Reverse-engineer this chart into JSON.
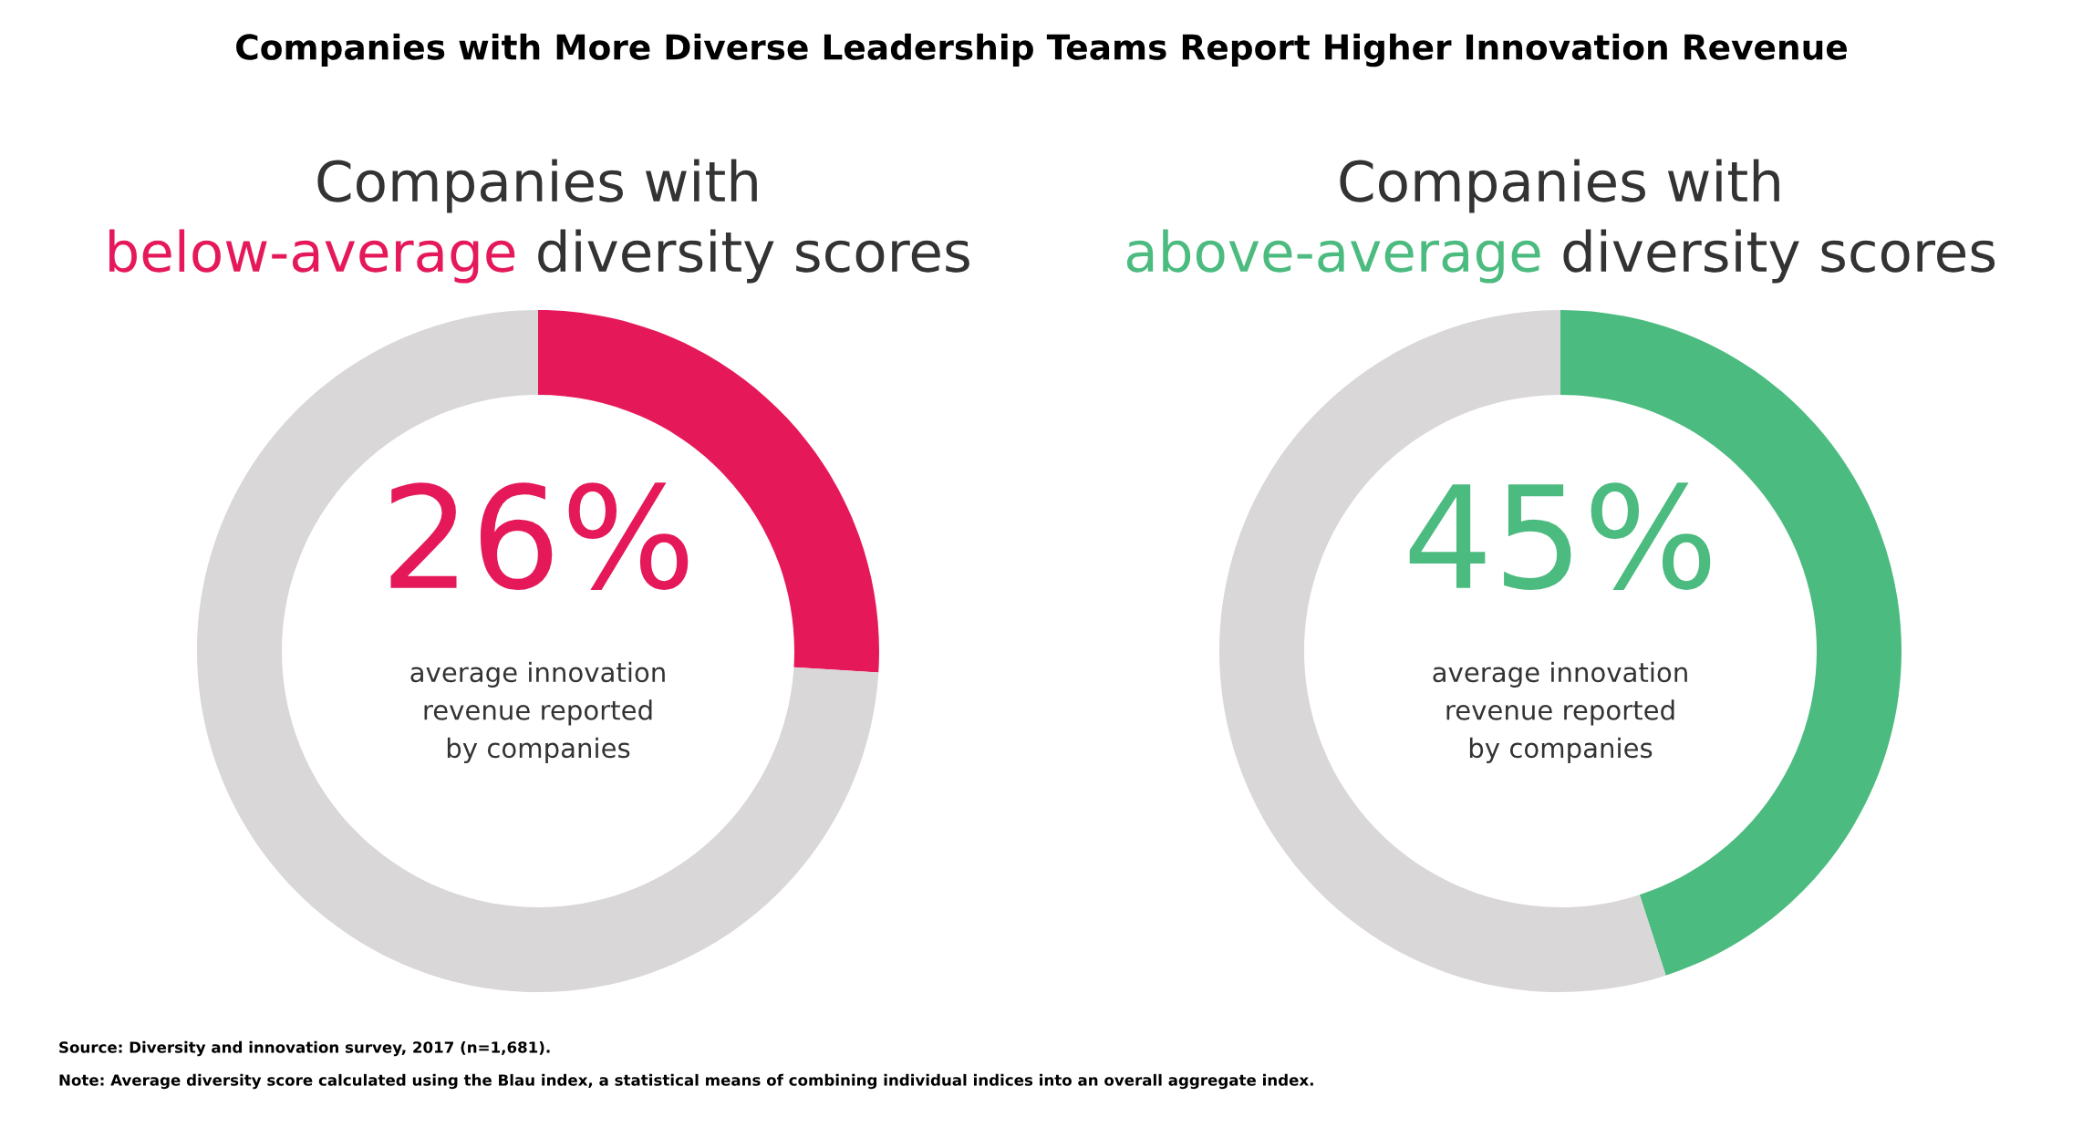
{
  "chart_data": [
    {
      "type": "other",
      "title": "Companies with More Diverse Leadership Teams Report Higher Innovation Revenue",
      "annotations": [
        "Source: Diversity and innovation survey, 2017 (n=1,681).",
        "Note: Average diversity score calculated using the Blau index, a statistical means of combining individual indices into an overall aggregate index."
      ]
    },
    {
      "type": "donut",
      "title": "Companies with",
      "subtitle": "below-average diversity scores",
      "categories": [
        null,
        null
      ],
      "values": [
        26,
        74
      ],
      "colors": [
        "#e5195a",
        "#d9d7d8"
      ],
      "value_labels": [
        "26%",
        null
      ],
      "annotations": [
        "average innovation\nrevenue reported\nby companies"
      ]
    },
    {
      "type": "donut",
      "title": "Companies with",
      "subtitle": "above-average diversity scores",
      "categories": [
        null,
        null
      ],
      "values": [
        45,
        55
      ],
      "colors": [
        "#4cbb7f",
        "#d9d7d8"
      ],
      "value_labels": [
        "45%",
        null
      ],
      "annotations": [
        "average innovation\nrevenue reported\nby companies"
      ]
    }
  ]
}
